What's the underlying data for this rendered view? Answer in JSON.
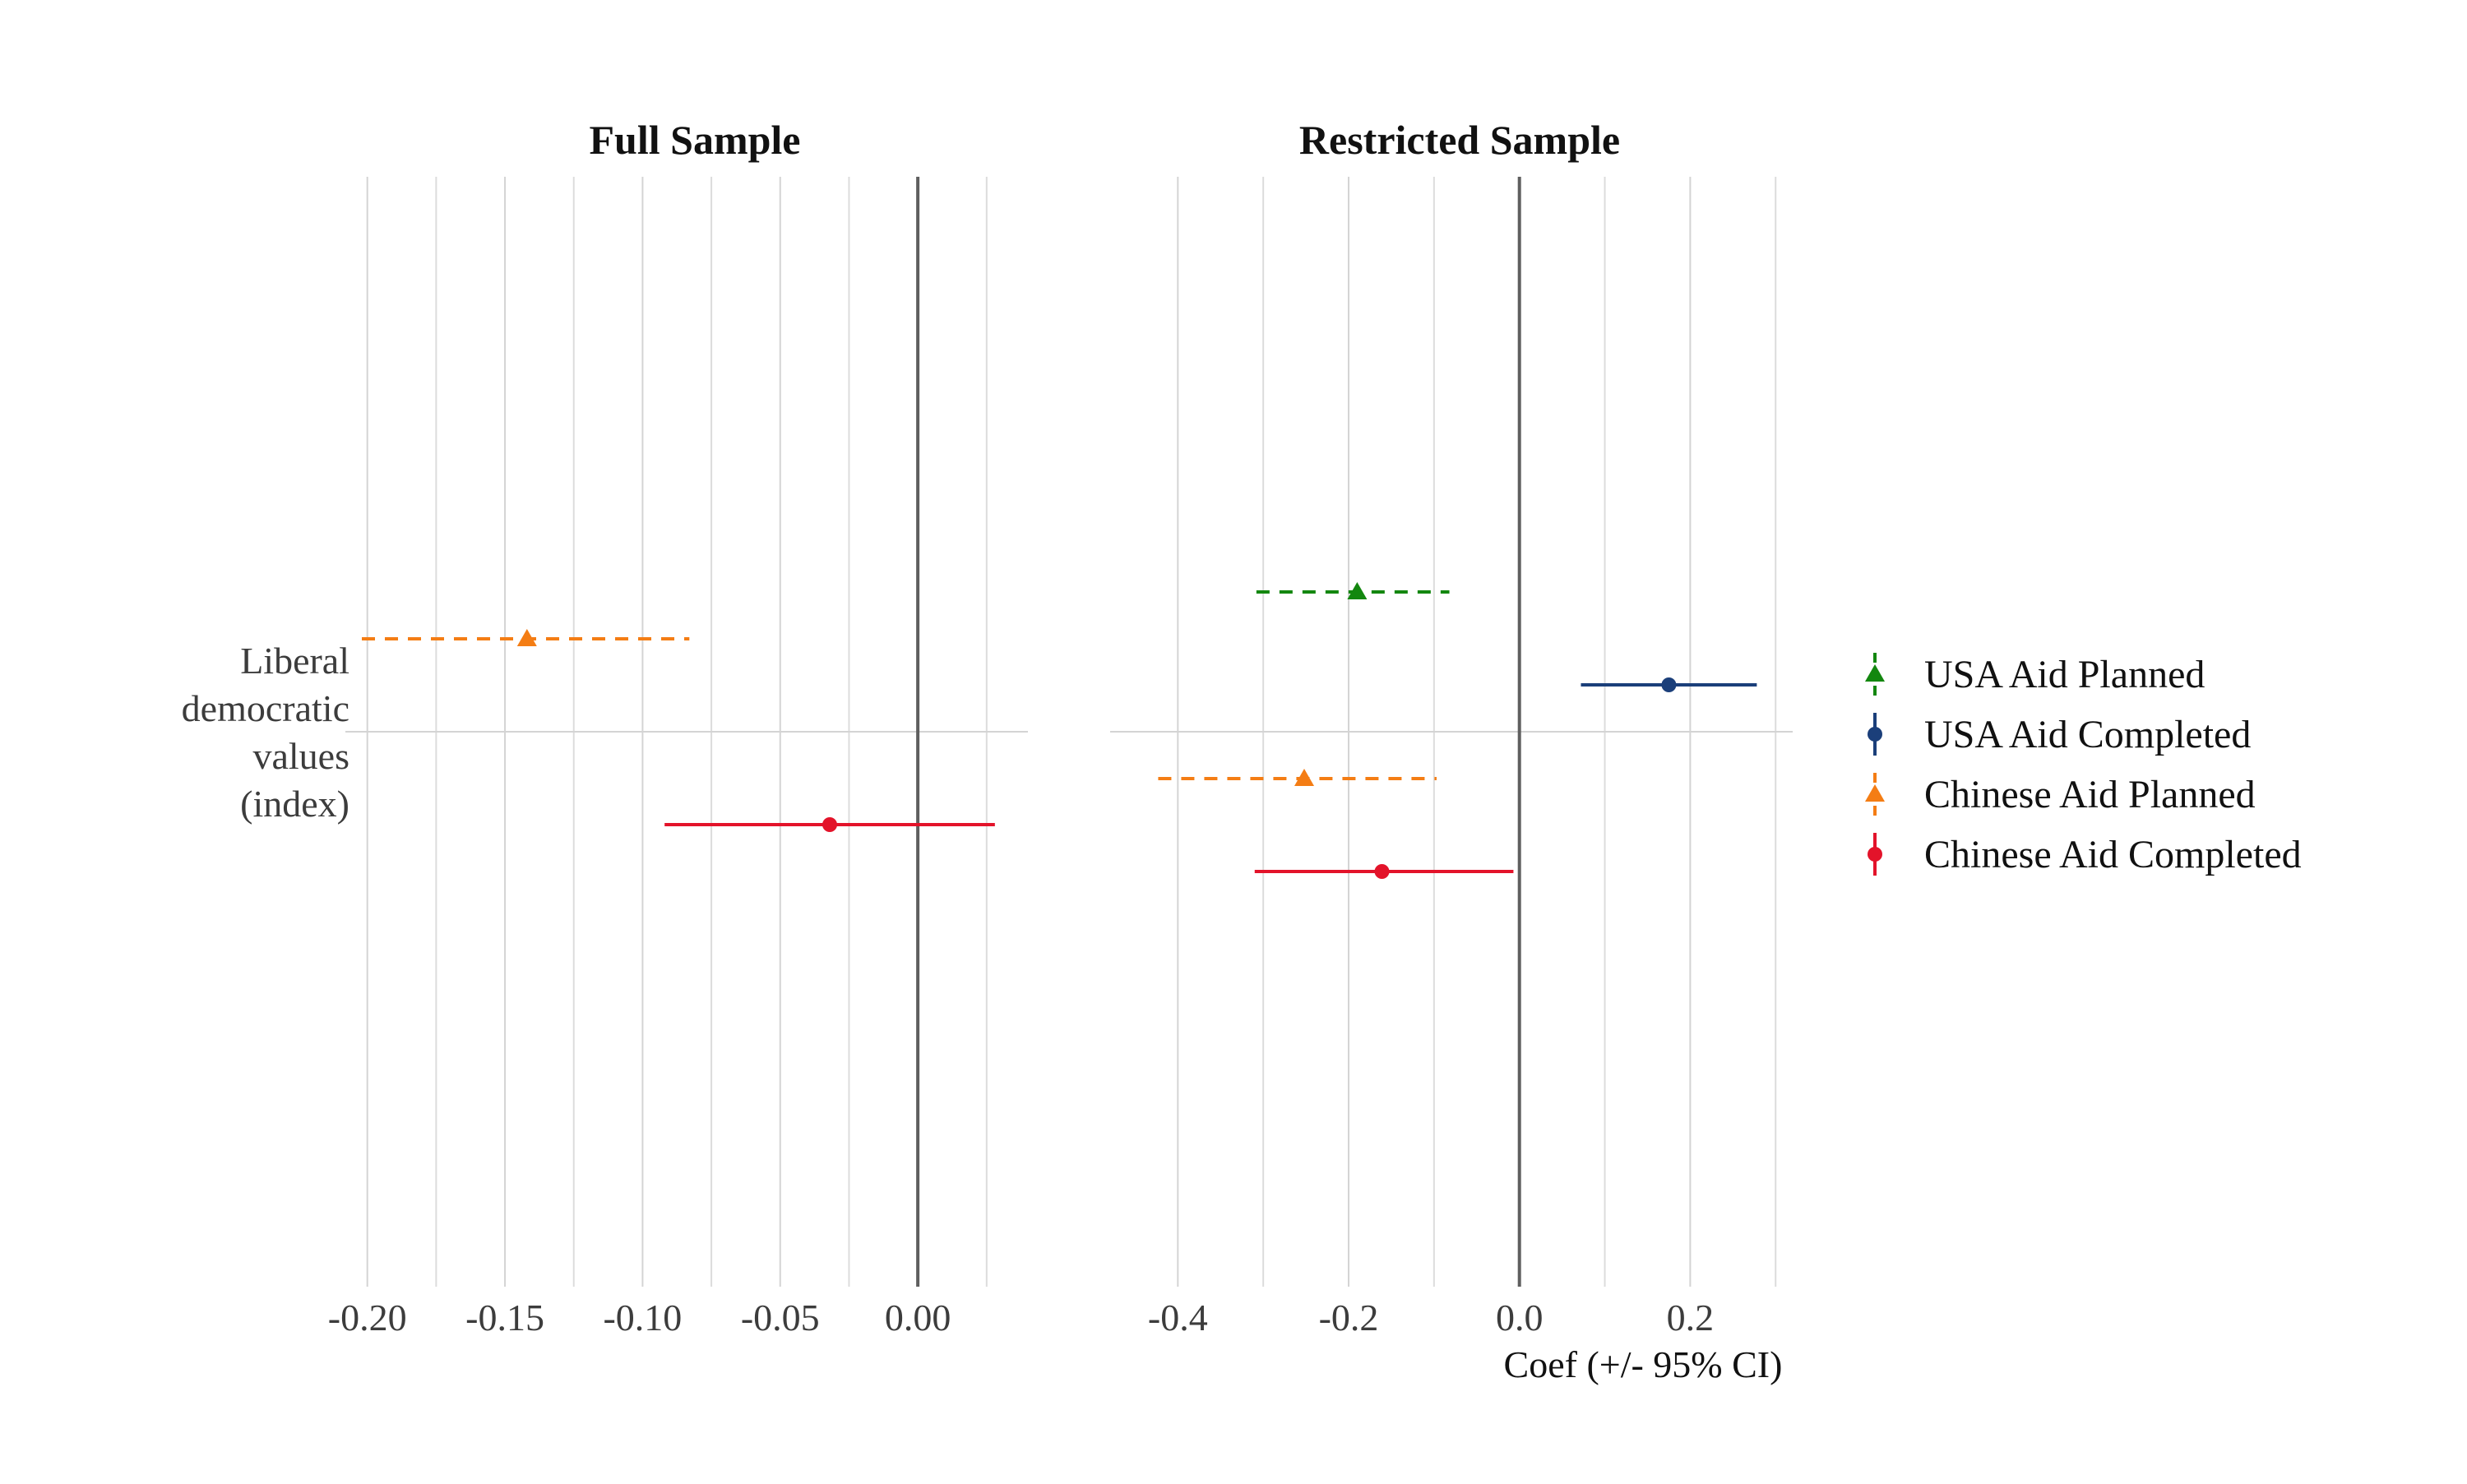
{
  "chart_data": [
    {
      "type": "forest",
      "title": "Full Sample",
      "xlabel": "",
      "xlim": [
        -0.202,
        0.04
      ],
      "x_ticks": [
        -0.2,
        -0.15,
        -0.1,
        -0.05,
        0.0
      ],
      "x_tick_labels": [
        "-0.20",
        "-0.15",
        "-0.10",
        "-0.05",
        "0.00"
      ],
      "minor_grid_x": [
        -0.175,
        -0.125,
        -0.075,
        -0.025,
        0.025
      ],
      "zero_line": 0,
      "category": "Liberal democratic values (index)",
      "category_lines": [
        "Liberal",
        "democratic",
        "values",
        "(index)"
      ],
      "estimates": [
        {
          "series": "Chinese Aid Planned",
          "estimate": -0.142,
          "ci_low": -0.202,
          "ci_high": -0.083
        },
        {
          "series": "Chinese Aid Completed",
          "estimate": -0.032,
          "ci_low": -0.092,
          "ci_high": 0.028
        }
      ]
    },
    {
      "type": "forest",
      "title": "Restricted Sample",
      "xlabel": "Coef (+/- 95% CI)",
      "xlim": [
        -0.46,
        0.32
      ],
      "x_ticks": [
        -0.4,
        -0.2,
        0.0,
        0.2
      ],
      "x_tick_labels": [
        "-0.4",
        "-0.2",
        "0.0",
        "0.2"
      ],
      "minor_grid_x": [
        -0.3,
        -0.1,
        0.1,
        0.3
      ],
      "zero_line": 0,
      "category": "Liberal democratic values (index)",
      "estimates": [
        {
          "series": "USA Aid Planned",
          "estimate": -0.19,
          "ci_low": -0.308,
          "ci_high": -0.082
        },
        {
          "series": "USA Aid Completed",
          "estimate": 0.175,
          "ci_low": 0.072,
          "ci_high": 0.278
        },
        {
          "series": "Chinese Aid Planned",
          "estimate": -0.252,
          "ci_low": -0.423,
          "ci_high": -0.097
        },
        {
          "series": "Chinese Aid Completed",
          "estimate": -0.161,
          "ci_low": -0.31,
          "ci_high": -0.007
        }
      ]
    }
  ],
  "legend": {
    "placement": "right",
    "items": [
      {
        "label": "USA Aid Planned",
        "color": "#13870f",
        "marker": "triangle",
        "linestyle": "dashed"
      },
      {
        "label": "USA Aid Completed",
        "color": "#1b3f7a",
        "marker": "circle",
        "linestyle": "solid"
      },
      {
        "label": "Chinese Aid Planned",
        "color": "#f47d14",
        "marker": "triangle",
        "linestyle": "dashed"
      },
      {
        "label": "Chinese Aid Completed",
        "color": "#e3132a",
        "marker": "circle",
        "linestyle": "solid"
      }
    ]
  }
}
